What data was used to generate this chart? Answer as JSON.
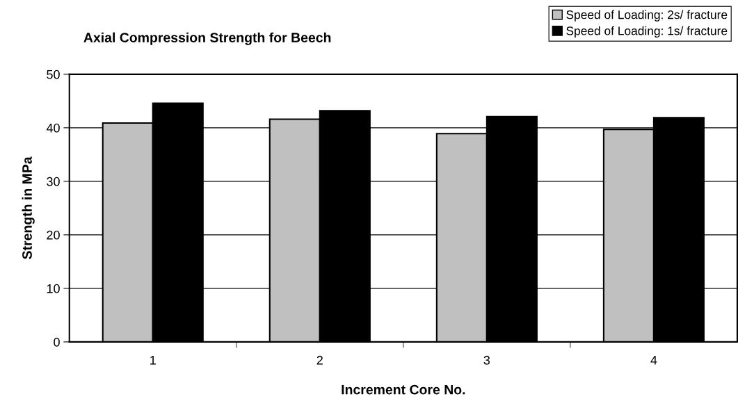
{
  "chart_data": {
    "type": "bar",
    "title": "Axial Compression Strength for Beech",
    "xlabel": "Increment Core No.",
    "ylabel": "Strength in MPa",
    "categories": [
      "1",
      "2",
      "3",
      "4"
    ],
    "series": [
      {
        "name": "Speed of Loading: 2s/ fracture",
        "color": "#c0c0c0",
        "values": [
          40.9,
          41.6,
          38.9,
          39.7
        ]
      },
      {
        "name": "Speed of Loading: 1s/ fracture",
        "color": "#000000",
        "values": [
          44.6,
          43.2,
          42.1,
          41.9
        ]
      }
    ],
    "ylim": [
      0,
      50
    ],
    "yticks": [
      0,
      10,
      20,
      30,
      40,
      50
    ],
    "grid": "y",
    "legend": "top right"
  }
}
